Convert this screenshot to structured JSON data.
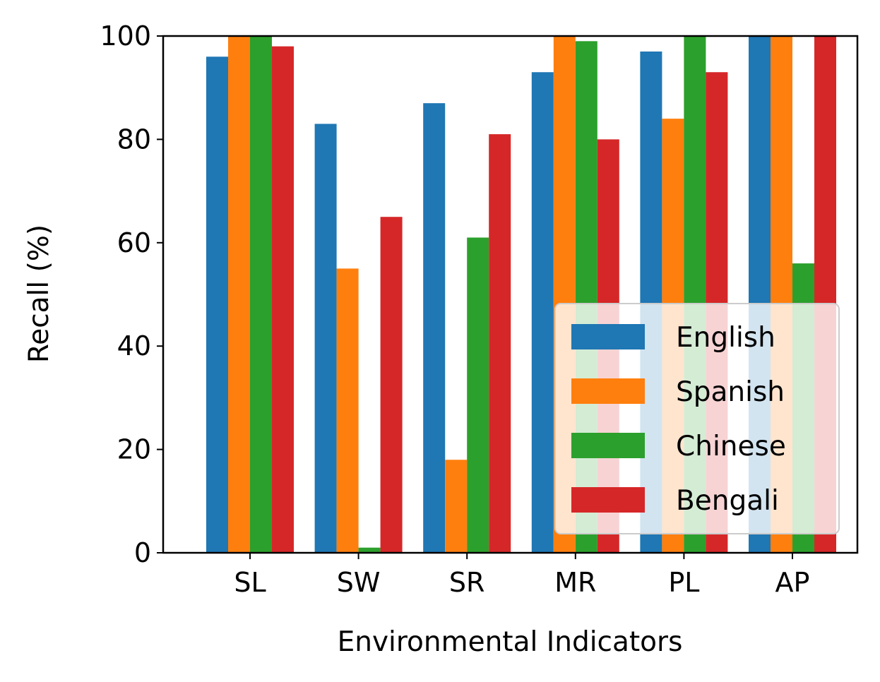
{
  "chart_data": {
    "type": "bar",
    "title": "",
    "xlabel": "Environmental Indicators",
    "ylabel": "Recall (%)",
    "ylim": [
      0,
      100
    ],
    "yticks": [
      0,
      20,
      40,
      60,
      80,
      100
    ],
    "grid": false,
    "legend_position": "lower-right",
    "categories": [
      "SL",
      "SW",
      "SR",
      "MR",
      "PL",
      "AP"
    ],
    "series": [
      {
        "name": "English",
        "color": "#1f77b4",
        "values": [
          96,
          83,
          87,
          93,
          97,
          100
        ]
      },
      {
        "name": "Spanish",
        "color": "#ff7f0e",
        "values": [
          100,
          55,
          18,
          100,
          84,
          100
        ]
      },
      {
        "name": "Chinese",
        "color": "#2ca02c",
        "values": [
          100,
          1,
          61,
          99,
          100,
          56
        ]
      },
      {
        "name": "Bengali",
        "color": "#d62728",
        "values": [
          98,
          65,
          81,
          80,
          93,
          100
        ]
      }
    ]
  }
}
